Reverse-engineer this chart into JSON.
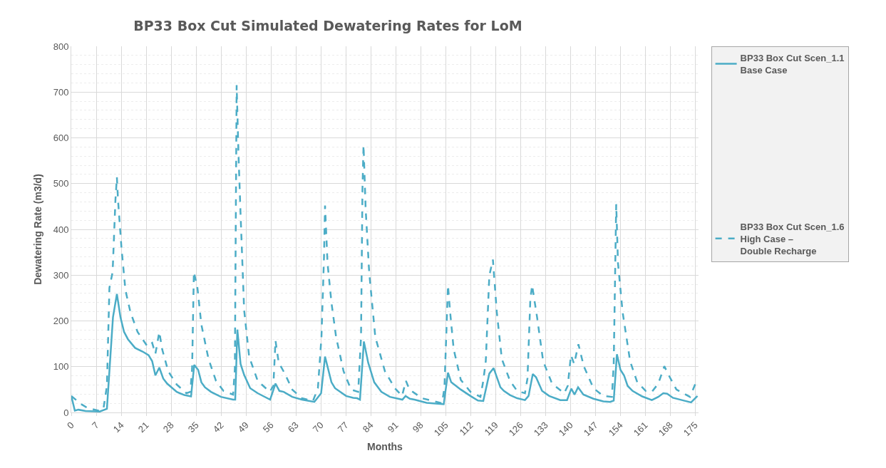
{
  "chart_data": {
    "type": "line",
    "title": "BP33 Box Cut Simulated Dewatering Rates for LoM",
    "xlabel": "Months",
    "ylabel": "Dewatering Rate (m3/d)",
    "xlim": [
      0,
      176
    ],
    "xticks": [
      0,
      7,
      14,
      21,
      28,
      35,
      42,
      49,
      56,
      63,
      70,
      77,
      84,
      91,
      98,
      105,
      112,
      119,
      126,
      133,
      140,
      147,
      154,
      161,
      168,
      175
    ],
    "ylim": [
      0,
      800
    ],
    "yticks": [
      0,
      100,
      200,
      300,
      400,
      500,
      600,
      700,
      800
    ],
    "grid": true,
    "legend": "right",
    "marker": "none",
    "series": [
      {
        "name": "BP33 Box Cut Scen_1.1\nBase Case",
        "color": "#4bacc6",
        "line_style": "solid",
        "x": [
          0,
          1,
          2,
          4,
          8,
          10,
          11.7,
          12.8,
          13.8,
          14.8,
          15.9,
          17.9,
          20,
          21.7,
          22.7,
          23.6,
          24.7,
          25.8,
          26.9,
          29.6,
          31.7,
          33.6,
          34.5,
          35.6,
          36.5,
          37.5,
          39.2,
          42,
          45.4,
          46,
          46.6,
          47.5,
          48.5,
          50.2,
          52.3,
          55.8,
          57.3,
          58.4,
          59.6,
          62,
          64.7,
          68.2,
          70.1,
          71.2,
          73,
          74,
          77.1,
          79.1,
          80.2,
          81,
          82.1,
          83.3,
          85,
          87,
          89.4,
          92.9,
          93.8,
          95,
          96.3,
          99.7,
          104.5,
          105.7,
          106.6,
          109.3,
          112,
          114.1,
          115.6,
          117.3,
          118.5,
          120.4,
          121.4,
          123.1,
          125.1,
          127.3,
          128.3,
          129.5,
          130.4,
          132.1,
          134.1,
          137.2,
          139.1,
          140.3,
          141.2,
          142.2,
          143.7,
          146.5,
          149.3,
          151.2,
          152.2,
          153.1,
          154.1,
          155.1,
          156.1,
          157.5,
          160.2,
          162.9,
          164.7,
          166.1,
          167.2,
          168.8,
          171.3,
          173.9,
          175.7
        ],
        "values": [
          36,
          4,
          6,
          3,
          2,
          8,
          208,
          259,
          208,
          176,
          160,
          141,
          133,
          125,
          112,
          81,
          98,
          74,
          63,
          45,
          38,
          35,
          104,
          93,
          66,
          55,
          45,
          34,
          28,
          28,
          181,
          106,
          82,
          53,
          42,
          28,
          63,
          47,
          45,
          34,
          28,
          23,
          42,
          122,
          66,
          53,
          36,
          32,
          31,
          28,
          155,
          109,
          66,
          45,
          34,
          28,
          36,
          30,
          28,
          21,
          18,
          87,
          66,
          50,
          36,
          26,
          25,
          85,
          97,
          55,
          47,
          38,
          31,
          27,
          36,
          84,
          77,
          47,
          36,
          27,
          27,
          52,
          39,
          55,
          39,
          30,
          24,
          23,
          26,
          127,
          93,
          81,
          58,
          47,
          35,
          27,
          34,
          42,
          41,
          32,
          27,
          22,
          36
        ]
      },
      {
        "name": "BP33 Box Cut Scen_1.6\nHigh Case –\nDouble Recharge",
        "color": "#4bacc6",
        "line_style": "dashed",
        "x": [
          0,
          2.8,
          4.5,
          7.6,
          9,
          10,
          10.7,
          11.6,
          12.4,
          12.8,
          13.1,
          14.1,
          15.2,
          16.6,
          18.6,
          21.4,
          22.7,
          23.6,
          24.7,
          25.5,
          27.2,
          29.6,
          32.3,
          33.4,
          33.9,
          34.4,
          35.4,
          36.5,
          38.5,
          40.6,
          42.7,
          45.4,
          45.9,
          46.4,
          46.9,
          47.5,
          48.5,
          49.9,
          52.3,
          55.7,
          56.7,
          57.3,
          58.2,
          59.9,
          62,
          64.7,
          67.8,
          69.2,
          70.2,
          70.9,
          71.2,
          71.9,
          73,
          74.3,
          76.4,
          78.5,
          80.5,
          81.3,
          81.7,
          82,
          82.6,
          83.6,
          85.3,
          88,
          90.8,
          92.8,
          93.9,
          94.9,
          98.4,
          104,
          104.7,
          105.7,
          106.3,
          107.3,
          109.3,
          112,
          114.8,
          115.6,
          116.3,
          117.3,
          118.3,
          119.4,
          120.8,
          123.1,
          125.1,
          127.3,
          128,
          128.8,
          129.3,
          130.7,
          132.4,
          134.9,
          138.3,
          139.3,
          140.2,
          141.1,
          142.3,
          143.8,
          146.5,
          149.3,
          151.7,
          152.2,
          152.9,
          153.4,
          154.7,
          156.8,
          158.8,
          161.2,
          162.9,
          164.7,
          166.4,
          167.8,
          169.8,
          173.6,
          175.3
        ],
        "values": [
          36,
          18,
          10,
          4,
          7,
          58,
          272,
          307,
          466,
          514,
          466,
          358,
          267,
          219,
          176,
          144,
          152,
          128,
          176,
          138,
          90,
          61,
          42,
          45,
          95,
          307,
          272,
          192,
          117,
          69,
          47,
          39,
          95,
          715,
          568,
          433,
          224,
          122,
          69,
          45,
          58,
          157,
          109,
          85,
          50,
          31,
          25,
          53,
          165,
          337,
          452,
          326,
          240,
          165,
          90,
          50,
          45,
          165,
          487,
          584,
          444,
          305,
          165,
          90,
          53,
          36,
          69,
          50,
          31,
          20,
          53,
          278,
          219,
          138,
          71,
          45,
          34,
          69,
          112,
          299,
          334,
          219,
          117,
          69,
          47,
          42,
          74,
          246,
          278,
          208,
          112,
          63,
          42,
          58,
          125,
          106,
          149,
          101,
          53,
          36,
          34,
          106,
          455,
          326,
          219,
          112,
          66,
          47,
          45,
          63,
          101,
          79,
          50,
          34,
          66
        ]
      }
    ]
  }
}
